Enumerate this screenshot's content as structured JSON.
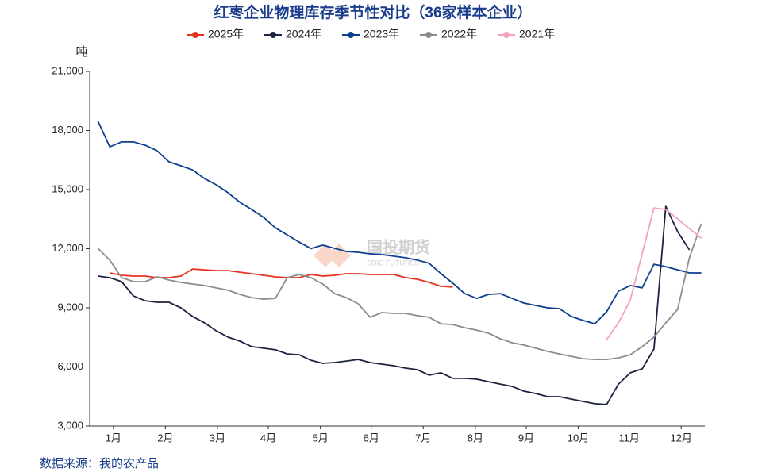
{
  "chart_data": {
    "type": "line",
    "title": "红枣企业物理库存季节性对比（36家样本企业）",
    "y_unit": "吨",
    "source": "数据来源：我的农产品",
    "watermark": {
      "name": "国投期货",
      "sub": "SDIC FUTURES"
    },
    "legend": "top",
    "x": [
      0,
      1,
      2,
      3,
      4,
      5,
      6,
      7,
      8,
      9,
      10,
      11,
      12,
      13,
      14,
      15,
      16,
      17,
      18,
      19,
      20,
      21,
      22,
      23,
      24,
      25,
      26,
      27,
      28,
      29,
      30,
      31,
      32,
      33,
      34,
      35,
      36,
      37,
      38,
      39,
      40,
      41,
      42,
      43,
      44,
      45,
      46,
      47,
      48,
      49,
      50,
      51
    ],
    "xlim": [
      -0.7,
      51.3
    ],
    "xticks": [
      {
        "value": 1.3,
        "label": "1月"
      },
      {
        "value": 5.7,
        "label": "2月"
      },
      {
        "value": 10.1,
        "label": "3月"
      },
      {
        "value": 14.4,
        "label": "4月"
      },
      {
        "value": 18.8,
        "label": "5月"
      },
      {
        "value": 23.1,
        "label": "6月"
      },
      {
        "value": 27.5,
        "label": "7月"
      },
      {
        "value": 31.9,
        "label": "8月"
      },
      {
        "value": 36.2,
        "label": "9月"
      },
      {
        "value": 40.6,
        "label": "10月"
      },
      {
        "value": 44.9,
        "label": "11月"
      },
      {
        "value": 49.3,
        "label": "12月"
      }
    ],
    "ylim": [
      3000,
      21000
    ],
    "yticks": [
      {
        "value": 3000,
        "label": "3,000"
      },
      {
        "value": 6000,
        "label": "6,000"
      },
      {
        "value": 9000,
        "label": "9,000"
      },
      {
        "value": 12000,
        "label": "12,000"
      },
      {
        "value": 15000,
        "label": "15,000"
      },
      {
        "value": 18000,
        "label": "18,000"
      },
      {
        "value": 21000,
        "label": "21,000"
      }
    ],
    "series": [
      {
        "name": "2025年",
        "color": "#e8321e",
        "values": [
          null,
          10770,
          10650,
          10610,
          10610,
          10530,
          10530,
          10610,
          10970,
          10930,
          10890,
          10890,
          10810,
          10730,
          10650,
          10570,
          10530,
          10530,
          10690,
          10610,
          10650,
          10730,
          10730,
          10690,
          10690,
          10690,
          10530,
          10450,
          10290,
          10090,
          10050,
          null,
          null,
          null,
          null,
          null,
          null,
          null,
          null,
          null,
          null,
          null,
          null,
          null,
          null,
          null,
          null,
          null,
          null,
          null,
          null,
          null
        ]
      },
      {
        "name": "2024年",
        "color": "#1c2340",
        "values": [
          10610,
          10530,
          10330,
          9600,
          9360,
          9280,
          9280,
          9000,
          8560,
          8240,
          7830,
          7510,
          7310,
          7030,
          6950,
          6870,
          6660,
          6620,
          6340,
          6180,
          6220,
          6300,
          6380,
          6220,
          6140,
          6060,
          5940,
          5860,
          5580,
          5700,
          5420,
          5420,
          5380,
          5250,
          5130,
          5010,
          4770,
          4650,
          4490,
          4490,
          4370,
          4250,
          4130,
          4090,
          5130,
          5700,
          5900,
          6910,
          14150,
          12870,
          11940,
          null
        ]
      },
      {
        "name": "2023年",
        "color": "#0d3f8f",
        "values": [
          18470,
          17170,
          17420,
          17420,
          17250,
          16970,
          16410,
          16210,
          16000,
          15560,
          15240,
          14840,
          14350,
          13990,
          13590,
          13060,
          12700,
          12340,
          12010,
          12180,
          12020,
          11860,
          11820,
          11740,
          11700,
          11620,
          11540,
          11420,
          11260,
          10730,
          10250,
          9720,
          9480,
          9680,
          9720,
          9480,
          9240,
          9120,
          9000,
          8960,
          8560,
          8360,
          8190,
          8800,
          9850,
          10130,
          10010,
          11210,
          11090,
          10930,
          10770,
          10770
        ]
      },
      {
        "name": "2022年",
        "color": "#8c8c8c",
        "values": [
          12020,
          11420,
          10530,
          10330,
          10330,
          10570,
          10410,
          10290,
          10210,
          10130,
          10010,
          9890,
          9680,
          9520,
          9440,
          9480,
          10530,
          10690,
          10530,
          10210,
          9720,
          9520,
          9200,
          8520,
          8760,
          8720,
          8720,
          8600,
          8520,
          8190,
          8150,
          7990,
          7870,
          7710,
          7430,
          7230,
          7110,
          6950,
          6790,
          6660,
          6540,
          6420,
          6380,
          6380,
          6460,
          6620,
          7030,
          7510,
          8240,
          8920,
          11540,
          13270
        ]
      },
      {
        "name": "2021年",
        "color": "#f4a0c0",
        "values": [
          null,
          null,
          null,
          null,
          null,
          null,
          null,
          null,
          null,
          null,
          null,
          null,
          null,
          null,
          null,
          null,
          null,
          null,
          null,
          null,
          null,
          null,
          null,
          null,
          null,
          null,
          null,
          null,
          null,
          null,
          null,
          null,
          null,
          null,
          null,
          null,
          null,
          null,
          null,
          null,
          null,
          null,
          null,
          7390,
          8240,
          9400,
          11740,
          14070,
          13990,
          13510,
          13020,
          12540
        ]
      }
    ]
  }
}
